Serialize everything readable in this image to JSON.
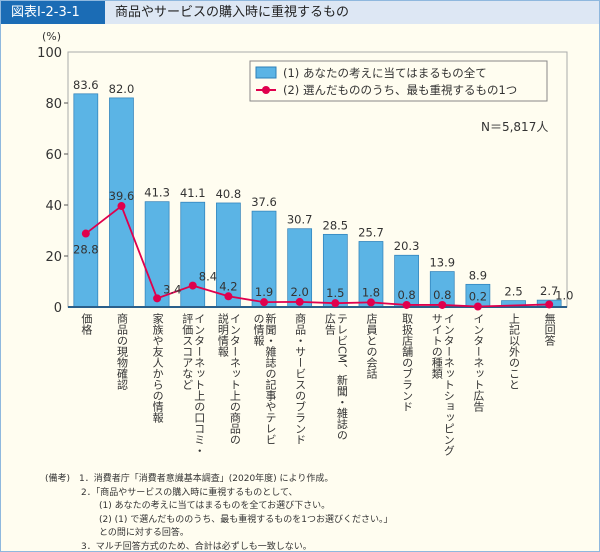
{
  "header": {
    "figure_id": "図表Ⅰ-2-3-1",
    "title": "商品やサービスの購入時に重視するもの"
  },
  "chart_data": {
    "type": "bar+line",
    "ylabel": "(%)",
    "ylim": [
      0,
      100
    ],
    "yticks": [
      0,
      20,
      40,
      60,
      80,
      100
    ],
    "categories": [
      "価格",
      "商品の現物確認",
      "家族や友人からの情報",
      "インターネット上の口コミ・\n評価スコアなど",
      "インターネット上の商品の\n説明情報",
      "新聞・雑誌の記事やテレビ\nの情報",
      "商品・サービスのブランド",
      "テレビCM、新聞・雑誌の\n広告",
      "店員との会話",
      "取扱店舗のブランド",
      "インターネットショッピング\nサイトの種類",
      "インターネット広告",
      "上記以外のこと",
      "無回答"
    ],
    "series": [
      {
        "name": "(1) あなたの考えに当てはまるもの全て",
        "type": "bar",
        "color": "#5bb4e5",
        "values": [
          83.6,
          82.0,
          41.3,
          41.1,
          40.8,
          37.6,
          30.7,
          28.5,
          25.7,
          20.3,
          13.9,
          8.9,
          2.5,
          2.7
        ]
      },
      {
        "name": "(2) 選んだもののうち、最も重視するもの1つ",
        "type": "line",
        "color": "#e0004d",
        "values": [
          28.8,
          39.6,
          3.4,
          8.4,
          4.2,
          1.9,
          2.0,
          1.5,
          1.8,
          0.8,
          0.8,
          0.2,
          null,
          1.0
        ]
      }
    ],
    "annotation": "N＝5,817人",
    "legend": "top-right"
  },
  "notes": "(備考)　1．消費者庁「消費者意識基本調査」(2020年度) により作成。\n　　　　2．「商品やサービスの購入時に重視するものとして、\n　　　　　　(1) あなたの考えに当てはまるものを全てお選び下さい。\n　　　　　　(2) (1) で選んだもののうち、最も重視するものを1つお選びください。」\n　　　　　　との問に対する回答。\n　　　　3．マルチ回答方式のため、合計は必ずしも一致しない。"
}
